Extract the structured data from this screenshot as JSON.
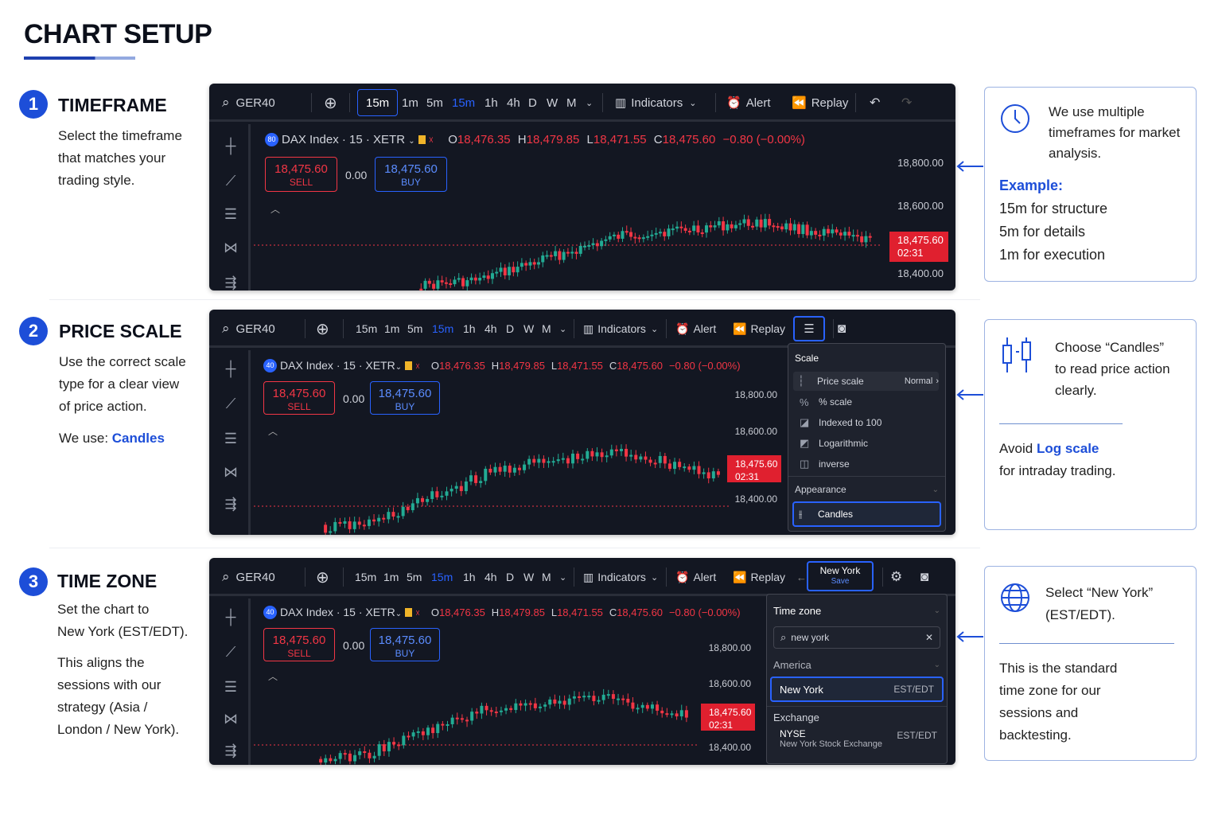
{
  "title": "CHART SETUP",
  "steps": [
    {
      "num": "1",
      "heading": "TIMEFRAME",
      "text": [
        "Select the timeframe",
        "that matches your",
        "trading style."
      ]
    },
    {
      "num": "2",
      "heading": "PRICE SCALE",
      "text": [
        "Use the correct scale",
        "type for a clear view",
        "of price action."
      ],
      "we_use_label": "We use: ",
      "we_use_value": "Candles"
    },
    {
      "num": "3",
      "heading": "TIME ZONE",
      "text": [
        "Set the chart to",
        "New York (EST/EDT)."
      ],
      "text2": [
        "This aligns the",
        "sessions with our",
        "strategy (Asia /",
        "London / New York)."
      ]
    }
  ],
  "toolbar": {
    "symbol": "GER40",
    "timeframes": [
      "15m",
      "1m",
      "5m",
      "15m",
      "1h",
      "4h",
      "D",
      "W",
      "M"
    ],
    "indicators": "Indicators",
    "alert": "Alert",
    "replay": "Replay"
  },
  "legend": {
    "badge1": "80",
    "badge": "40",
    "name": "DAX Index · 15 · XETR",
    "o_label": "O",
    "o": "18,476.35",
    "h_label": "H",
    "h": "18,479.85",
    "l_label": "L",
    "l": "18,471.55",
    "c_label": "C",
    "c": "18,475.60",
    "chg": "−0.80 (−0.00%)"
  },
  "order": {
    "sell_price": "18,475.60",
    "sell_label": "SELL",
    "spread": "0.00",
    "buy_price": "18,475.60",
    "buy_label": "BUY"
  },
  "price_scale": {
    "levels": [
      "18,800.00",
      "18,600.00",
      "18,400.00"
    ],
    "last_price": "18,475.60",
    "countdown": "02:31"
  },
  "scale_menu": {
    "title": "Scale",
    "items": [
      {
        "label": "Price scale",
        "value": "Normal"
      },
      {
        "label": "% scale"
      },
      {
        "label": "Indexed to 100"
      },
      {
        "label": "Logarithmic"
      },
      {
        "label": "inverse"
      }
    ],
    "appearance": "Appearance",
    "candles": "Candles"
  },
  "tz_button": {
    "label": "New York",
    "sub": "Save"
  },
  "tz_menu": {
    "title": "Time zone",
    "search": "new york",
    "group1": "America",
    "selected": "New York",
    "selected_tz": "EST/EDT",
    "group2": "Exchange",
    "ex_name": "NYSE",
    "ex_desc": "New York Stock Exchange",
    "ex_tz": "EST/EDT"
  },
  "cards": [
    {
      "lines": [
        "We use multiple",
        "timeframes for market",
        "analysis."
      ],
      "example": "Example:",
      "ex_lines": [
        "15m for structure",
        "5m for details",
        "1m for execution"
      ]
    },
    {
      "lines": [
        "Choose “Candles”",
        "to read price action",
        "clearly."
      ],
      "avoid_pre": "Avoid ",
      "avoid_strong": "Log scale",
      "avoid_post": "for intraday trading."
    },
    {
      "lines": [
        "Select “New York”",
        "(EST/EDT)."
      ],
      "lines2": [
        "This is the standard",
        "time zone for our",
        "sessions and",
        "backtesting."
      ]
    }
  ],
  "colors": {
    "accent": "#1d4ed8",
    "panel": "#131722",
    "up": "#22ab94",
    "down": "#f23645",
    "tv_blue": "#2962ff"
  }
}
